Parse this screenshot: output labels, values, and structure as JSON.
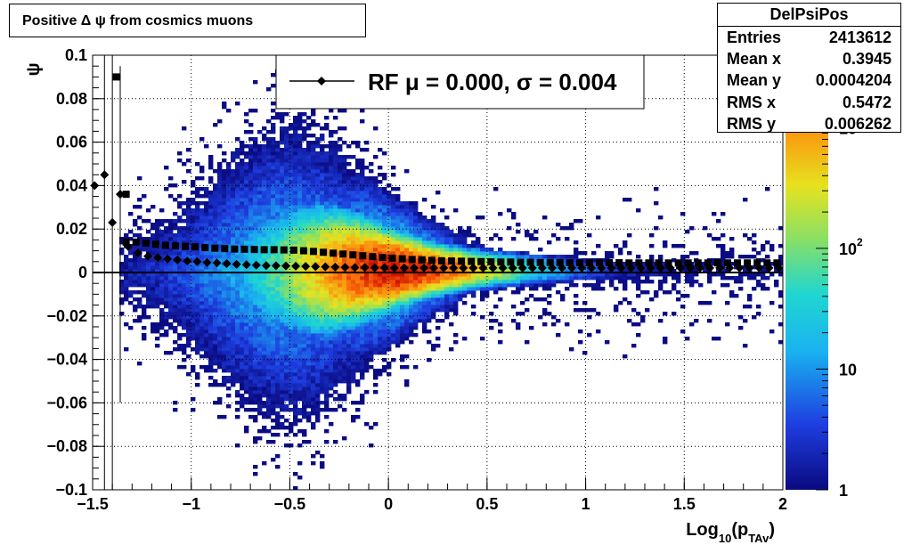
{
  "title": "Positive Δ ψ from cosmics muons",
  "stats": {
    "name": "DelPsiPos",
    "rows": [
      {
        "label": "Entries",
        "value": "2413612"
      },
      {
        "label": "Mean x",
        "value": "0.3945"
      },
      {
        "label": "Mean y",
        "value": "0.0004204"
      },
      {
        "label": "RMS x",
        "value": "0.5472"
      },
      {
        "label": "RMS y",
        "value": "0.006262"
      }
    ]
  },
  "legend": {
    "entry": "RF μ =  0.000, σ =   0.004"
  },
  "colorbar": {
    "ticks": [
      "1",
      "10",
      "10",
      "10"
    ],
    "exponents": [
      "",
      "",
      "2",
      "3"
    ],
    "top_partial": "10"
  },
  "chart_data": {
    "type": "heatmap",
    "title": "Positive Δ ψ from cosmics muons",
    "xlabel_main": "Log",
    "xlabel_sub1": "10",
    "xlabel_mid": "(p",
    "xlabel_sub2": "TAv",
    "xlabel_end": ")",
    "ylabel": "ψ",
    "xlim": [
      -1.5,
      2
    ],
    "ylim": [
      -0.1,
      0.1
    ],
    "x_ticks": [
      -1.5,
      -1,
      -0.5,
      0,
      0.5,
      1,
      1.5,
      2
    ],
    "x_tick_labels": [
      "−1.5",
      "−1",
      "−0.5",
      "0",
      "0.5",
      "1",
      "1.5",
      "2"
    ],
    "y_ticks": [
      -0.1,
      -0.08,
      -0.06,
      -0.04,
      -0.02,
      0,
      0.02,
      0.04,
      0.06,
      0.08,
      0.1
    ],
    "y_tick_labels": [
      "−0.1",
      "−0.08",
      "−0.06",
      "−0.04",
      "−0.02",
      "0",
      "0.02",
      "0.04",
      "0.06",
      "0.08",
      "0.1"
    ],
    "z_scale": "log",
    "zlim": [
      1,
      1000
    ],
    "grid": true,
    "legend_position": "top-center",
    "series": [
      {
        "name": "RF",
        "marker": "diamond",
        "points": [
          [
            -1.49,
            0.04
          ],
          [
            -1.44,
            0.045
          ],
          [
            -1.4,
            0.023
          ],
          [
            -1.36,
            0.036
          ],
          [
            -1.32,
            0.012
          ],
          [
            -1.27,
            0.009
          ],
          [
            -1.22,
            0.0075
          ],
          [
            -1.17,
            0.0068
          ],
          [
            -1.12,
            0.0062
          ],
          [
            -1.07,
            0.0058
          ],
          [
            -1.02,
            0.0053
          ],
          [
            -0.97,
            0.005
          ],
          [
            -0.92,
            0.0046
          ],
          [
            -0.87,
            0.0044
          ],
          [
            -0.82,
            0.0041
          ],
          [
            -0.77,
            0.0038
          ],
          [
            -0.72,
            0.0036
          ],
          [
            -0.67,
            0.0034
          ],
          [
            -0.62,
            0.0032
          ],
          [
            -0.57,
            0.0031
          ],
          [
            -0.52,
            0.003
          ],
          [
            -0.47,
            0.0029
          ],
          [
            -0.42,
            0.0028
          ],
          [
            -0.37,
            0.0027
          ],
          [
            -0.32,
            0.0026
          ],
          [
            -0.27,
            0.0025
          ],
          [
            -0.22,
            0.0024
          ],
          [
            -0.17,
            0.0023
          ],
          [
            -0.12,
            0.0023
          ],
          [
            -0.07,
            0.0022
          ],
          [
            -0.02,
            0.0022
          ],
          [
            0.03,
            0.0021
          ],
          [
            0.08,
            0.0021
          ],
          [
            0.13,
            0.0021
          ],
          [
            0.18,
            0.0021
          ],
          [
            0.23,
            0.0021
          ],
          [
            0.28,
            0.0021
          ],
          [
            0.33,
            0.0021
          ],
          [
            0.38,
            0.0021
          ],
          [
            0.43,
            0.0021
          ],
          [
            0.48,
            0.0021
          ],
          [
            0.53,
            0.0021
          ],
          [
            0.58,
            0.0021
          ],
          [
            0.63,
            0.0021
          ],
          [
            0.68,
            0.0021
          ],
          [
            0.73,
            0.0021
          ],
          [
            0.78,
            0.0021
          ],
          [
            0.83,
            0.0021
          ],
          [
            0.88,
            0.0021
          ],
          [
            0.93,
            0.0021
          ],
          [
            0.98,
            0.0021
          ],
          [
            1.03,
            0.0021
          ],
          [
            1.08,
            0.0021
          ],
          [
            1.13,
            0.0021
          ],
          [
            1.18,
            0.0021
          ],
          [
            1.23,
            0.0021
          ],
          [
            1.28,
            0.0021
          ],
          [
            1.33,
            0.0021
          ],
          [
            1.38,
            0.0021
          ],
          [
            1.43,
            0.0021
          ],
          [
            1.48,
            0.0021
          ],
          [
            1.53,
            0.0021
          ],
          [
            1.58,
            0.0021
          ],
          [
            1.63,
            0.0021
          ],
          [
            1.68,
            0.0021
          ],
          [
            1.73,
            0.0021
          ],
          [
            1.78,
            0.0021
          ],
          [
            1.83,
            0.0021
          ],
          [
            1.88,
            0.0021
          ],
          [
            1.93,
            0.0021
          ],
          [
            1.98,
            0.0021
          ]
        ]
      },
      {
        "marker": "square",
        "points": [
          [
            -1.38,
            0.09
          ],
          [
            -1.33,
            0.036
          ],
          [
            -1.33,
            0.014
          ],
          [
            -1.28,
            0.014
          ],
          [
            -1.23,
            0.0135
          ],
          [
            -1.18,
            0.013
          ],
          [
            -1.13,
            0.0125
          ],
          [
            -1.08,
            0.0122
          ],
          [
            -1.03,
            0.012
          ],
          [
            -0.98,
            0.0118
          ],
          [
            -0.93,
            0.0115
          ],
          [
            -0.88,
            0.0112
          ],
          [
            -0.83,
            0.011
          ],
          [
            -0.78,
            0.0108
          ],
          [
            -0.73,
            0.0107
          ],
          [
            -0.68,
            0.0106
          ],
          [
            -0.63,
            0.0105
          ],
          [
            -0.58,
            0.0105
          ],
          [
            -0.53,
            0.0104
          ],
          [
            -0.48,
            0.0103
          ],
          [
            -0.43,
            0.01
          ],
          [
            -0.38,
            0.0097
          ],
          [
            -0.33,
            0.0093
          ],
          [
            -0.28,
            0.0089
          ],
          [
            -0.23,
            0.0085
          ],
          [
            -0.18,
            0.0081
          ],
          [
            -0.13,
            0.0077
          ],
          [
            -0.08,
            0.0073
          ],
          [
            -0.03,
            0.0069
          ],
          [
            0.02,
            0.0066
          ],
          [
            0.07,
            0.0063
          ],
          [
            0.12,
            0.006
          ],
          [
            0.17,
            0.0058
          ],
          [
            0.22,
            0.0056
          ],
          [
            0.27,
            0.0054
          ],
          [
            0.32,
            0.0053
          ],
          [
            0.37,
            0.0052
          ],
          [
            0.42,
            0.0051
          ],
          [
            0.47,
            0.005
          ],
          [
            0.52,
            0.0049
          ],
          [
            0.57,
            0.0048
          ],
          [
            0.62,
            0.0048
          ],
          [
            0.67,
            0.0047
          ],
          [
            0.72,
            0.0047
          ],
          [
            0.77,
            0.0046
          ],
          [
            0.82,
            0.0046
          ],
          [
            0.87,
            0.0046
          ],
          [
            0.92,
            0.0045
          ],
          [
            0.97,
            0.0045
          ],
          [
            1.02,
            0.0045
          ],
          [
            1.07,
            0.0045
          ],
          [
            1.12,
            0.0045
          ],
          [
            1.17,
            0.0045
          ],
          [
            1.22,
            0.0044
          ],
          [
            1.27,
            0.0044
          ],
          [
            1.32,
            0.0044
          ],
          [
            1.37,
            0.0044
          ],
          [
            1.42,
            0.0044
          ],
          [
            1.47,
            0.0044
          ],
          [
            1.52,
            0.0044
          ],
          [
            1.57,
            0.0044
          ],
          [
            1.62,
            0.0044
          ],
          [
            1.67,
            0.0044
          ],
          [
            1.72,
            0.0044
          ],
          [
            1.77,
            0.0044
          ],
          [
            1.82,
            0.0044
          ],
          [
            1.87,
            0.0044
          ],
          [
            1.92,
            0.0044
          ],
          [
            1.97,
            0.0044
          ]
        ]
      }
    ],
    "lines": [
      {
        "x": [
          -1.5,
          2
        ],
        "y": [
          0.0,
          0.0
        ],
        "role": "horizontal-line"
      }
    ]
  }
}
